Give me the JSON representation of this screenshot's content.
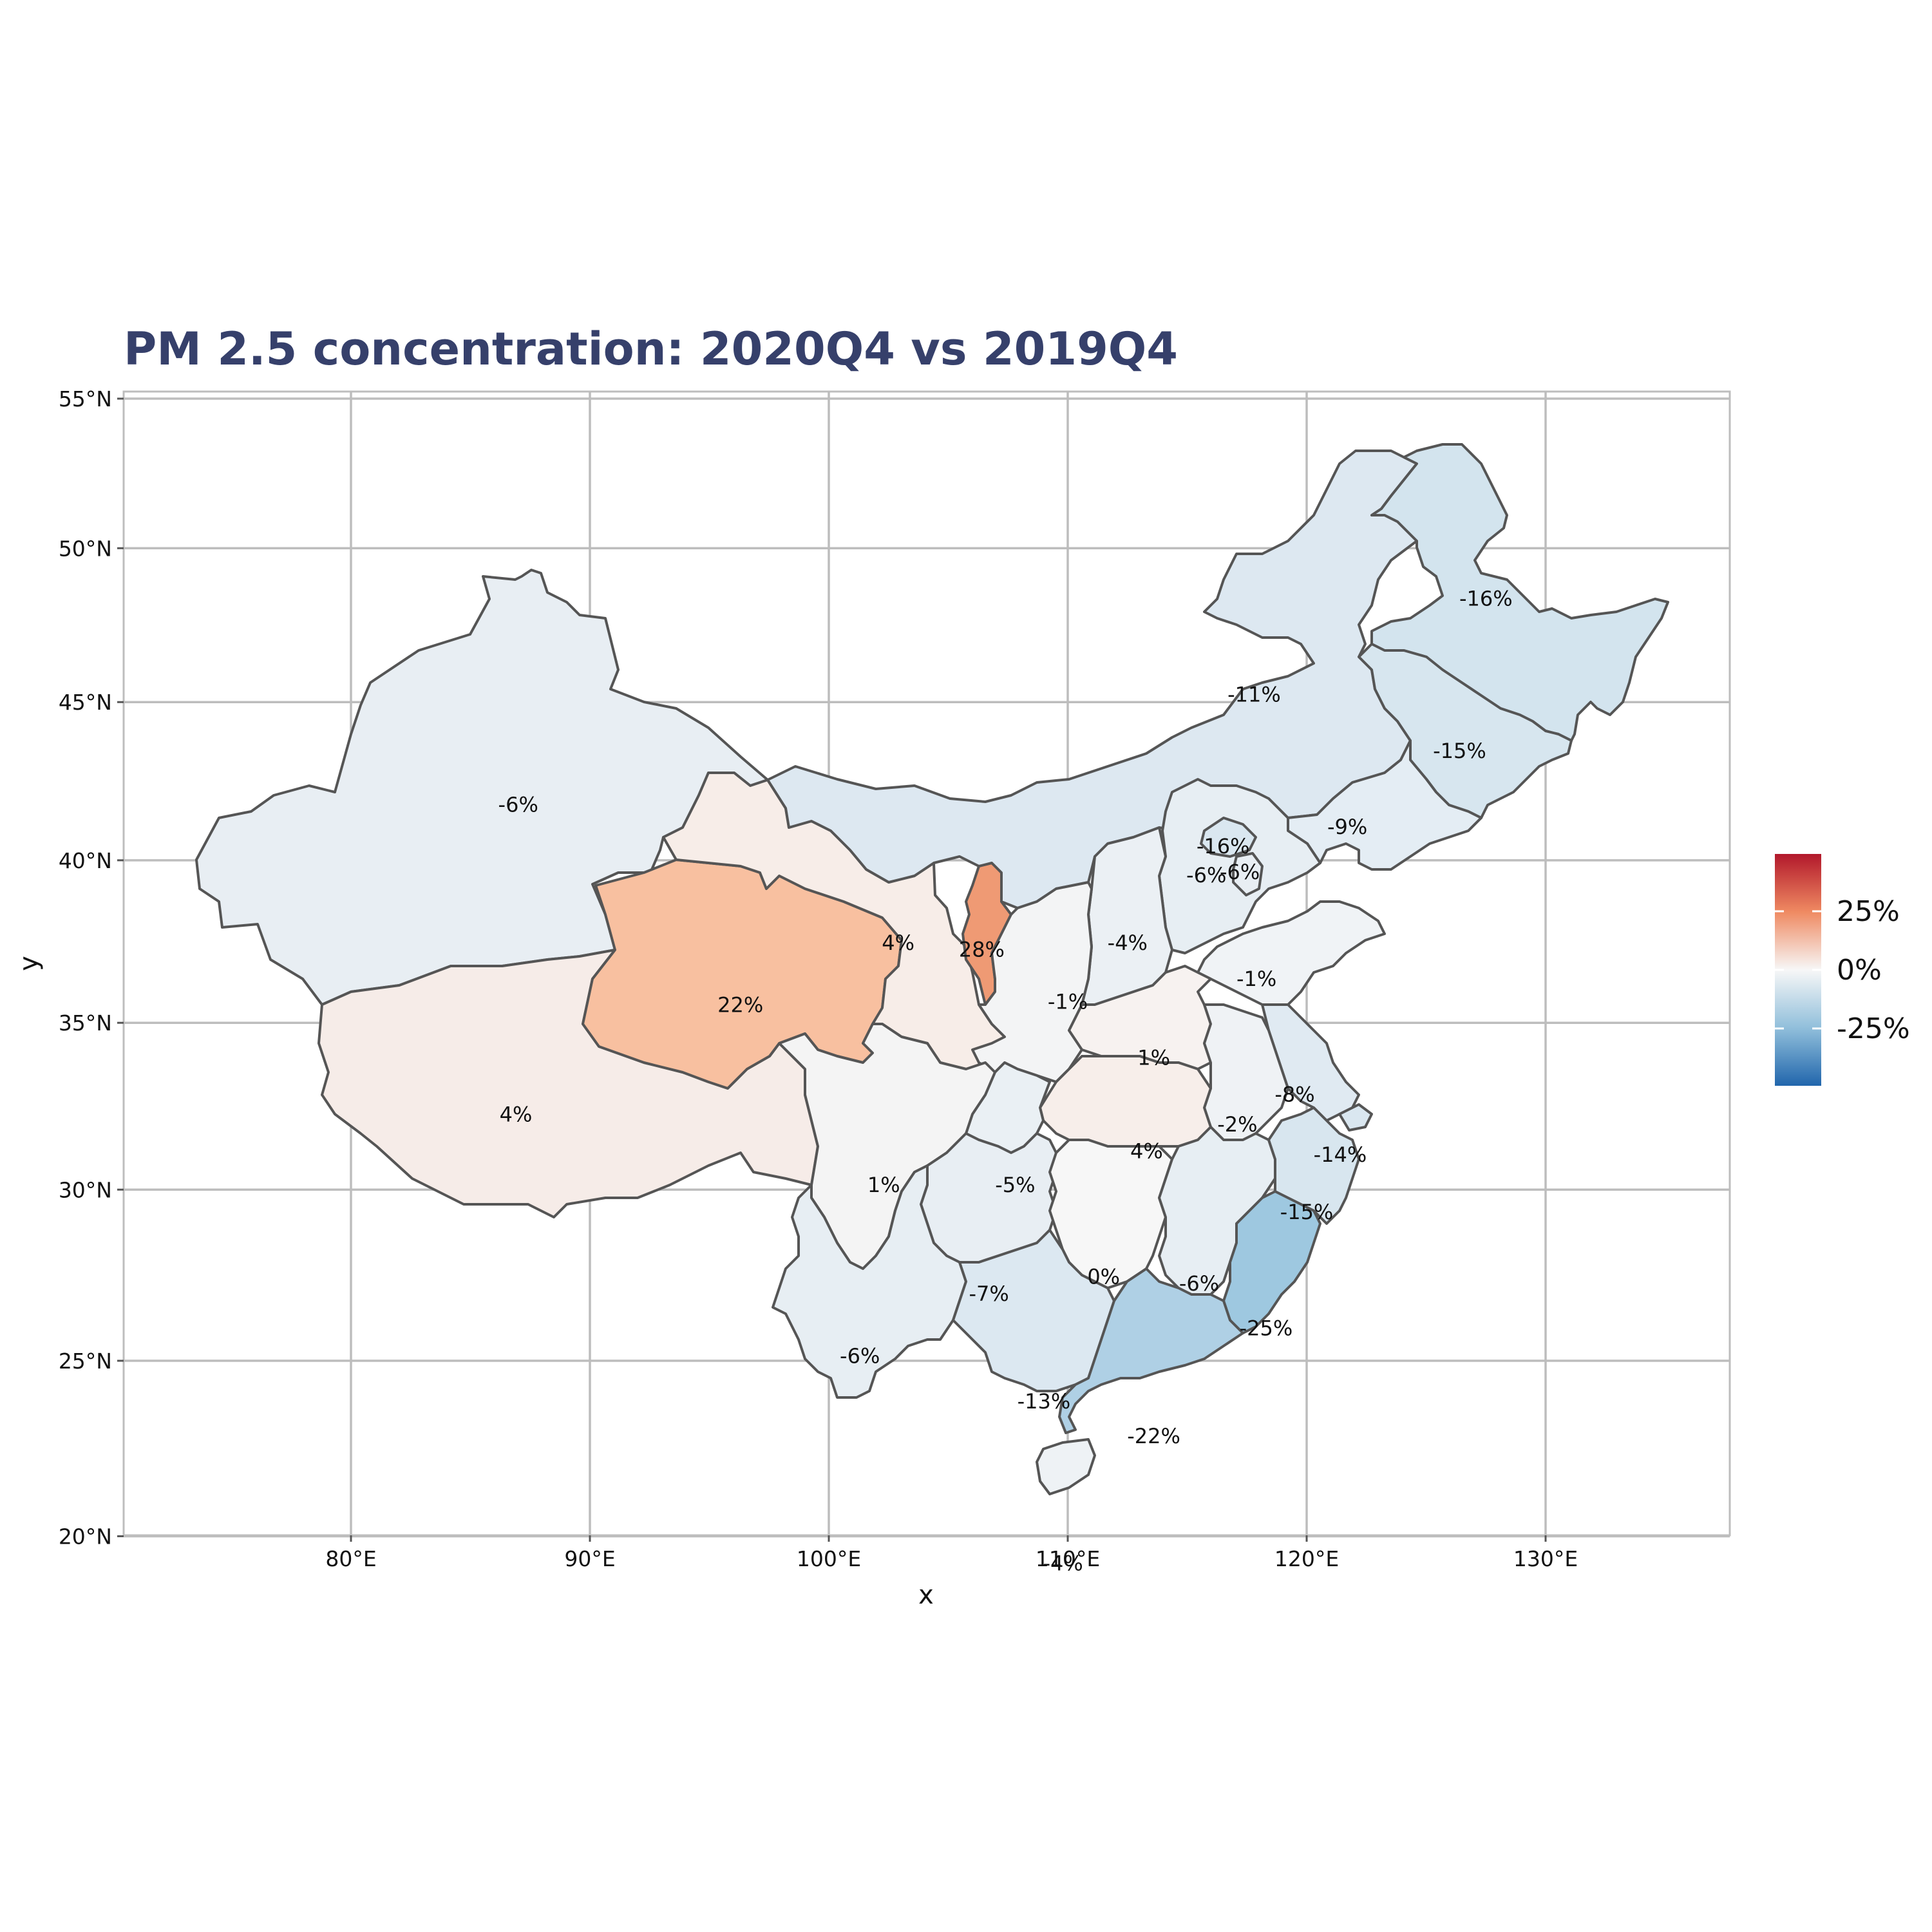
{
  "chart": {
    "title": "PM 2.5 concentration: 2020Q4 vs 2019Q4",
    "xlabel": "x",
    "ylabel": "y",
    "x_ticks": [
      "80°E",
      "90°E",
      "100°E",
      "110°E",
      "120°E",
      "130°E"
    ],
    "y_ticks": [
      "55°N",
      "50°N",
      "45°N",
      "40°N",
      "35°N",
      "30°N",
      "25°N",
      "20°N"
    ],
    "legend_labels": [
      "25%",
      "0%",
      "-25%"
    ]
  },
  "chart_data": {
    "type": "choropleth",
    "title": "PM 2.5 concentration: 2020Q4 vs 2019Q4",
    "xlabel": "x",
    "ylabel": "y",
    "xlim": [
      70.5,
      138
    ],
    "ylim": [
      16.5,
      55
    ],
    "grid": true,
    "color_scale": {
      "palette": "RdBu (diverging, reversed)",
      "low_color": "#2166ac",
      "mid_color": "#f7f7f7",
      "high_color": "#b2182b",
      "breaks": [
        "25%",
        "0%",
        "-25%"
      ],
      "legend_position": "right"
    },
    "regions": [
      {
        "lon": 87.0,
        "lat": 41.7,
        "label": "-6%",
        "value": -6
      },
      {
        "lon": 86.9,
        "lat": 32.2,
        "label": "4%",
        "value": 4
      },
      {
        "lon": 96.3,
        "lat": 35.5,
        "label": "22%",
        "value": 22
      },
      {
        "lon": 102.9,
        "lat": 37.4,
        "label": "4%",
        "value": 4
      },
      {
        "lon": 106.4,
        "lat": 37.2,
        "label": "28%",
        "value": 28
      },
      {
        "lon": 117.8,
        "lat": 45.2,
        "label": "-11%",
        "value": -11
      },
      {
        "lon": 127.5,
        "lat": 48.3,
        "label": "-16%",
        "value": -16
      },
      {
        "lon": 126.4,
        "lat": 43.4,
        "label": "-15%",
        "value": -15
      },
      {
        "lon": 121.7,
        "lat": 41.0,
        "label": "-9%",
        "value": -9
      },
      {
        "lon": 116.5,
        "lat": 40.4,
        "label": "-16%",
        "value": -16
      },
      {
        "lon": 115.8,
        "lat": 39.5,
        "label": "-6%",
        "value": -6
      },
      {
        "lon": 117.2,
        "lat": 39.6,
        "label": "-6%",
        "value": -6
      },
      {
        "lon": 112.5,
        "lat": 37.4,
        "label": "-4%",
        "value": -4
      },
      {
        "lon": 117.9,
        "lat": 36.3,
        "label": "-1%",
        "value": -1
      },
      {
        "lon": 110.0,
        "lat": 35.6,
        "label": "-1%",
        "value": -1
      },
      {
        "lon": 113.6,
        "lat": 33.9,
        "label": "1%",
        "value": 1
      },
      {
        "lon": 119.5,
        "lat": 32.8,
        "label": "-8%",
        "value": -8
      },
      {
        "lon": 117.1,
        "lat": 31.9,
        "label": "-2%",
        "value": -2
      },
      {
        "lon": 121.4,
        "lat": 31.0,
        "label": "-14%",
        "value": -14
      },
      {
        "lon": 113.3,
        "lat": 31.1,
        "label": "4%",
        "value": 4
      },
      {
        "lon": 102.3,
        "lat": 30.1,
        "label": "1%",
        "value": 1
      },
      {
        "lon": 107.8,
        "lat": 30.1,
        "label": "-5%",
        "value": -5
      },
      {
        "lon": 120.0,
        "lat": 29.3,
        "label": "-15%",
        "value": -15
      },
      {
        "lon": 111.5,
        "lat": 27.4,
        "label": "0%",
        "value": 0
      },
      {
        "lon": 115.5,
        "lat": 27.2,
        "label": "-6%",
        "value": -6
      },
      {
        "lon": 106.7,
        "lat": 26.9,
        "label": "-7%",
        "value": -7
      },
      {
        "lon": 118.3,
        "lat": 25.9,
        "label": "-25%",
        "value": -25
      },
      {
        "lon": 101.3,
        "lat": 25.1,
        "label": "-6%",
        "value": -6
      },
      {
        "lon": 109.0,
        "lat": 23.8,
        "label": "-13%",
        "value": -13
      },
      {
        "lon": 113.6,
        "lat": 22.8,
        "label": "-22%",
        "value": -22
      },
      {
        "lon": 109.8,
        "lat": 19.2,
        "label": "-4%",
        "value": -4
      }
    ]
  }
}
